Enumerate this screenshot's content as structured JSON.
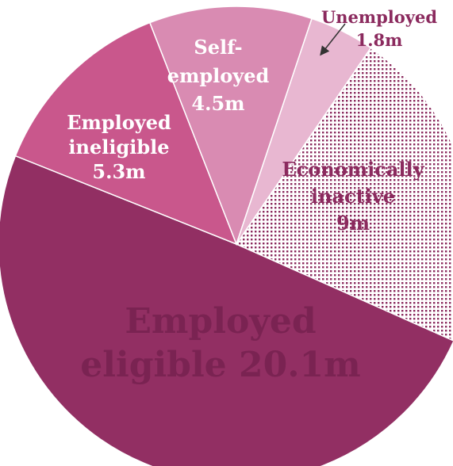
{
  "chart_data": {
    "type": "pie",
    "title": "",
    "unit": "m",
    "slices": [
      {
        "name": "Employed eligible",
        "value": 20.1,
        "label_lines": [
          "Employed",
          "eligible 20.1m"
        ],
        "color": "#922f63",
        "pattern": "solid"
      },
      {
        "name": "Employed ineligible",
        "value": 5.3,
        "label_lines": [
          "Employed",
          "ineligible",
          "5.3m"
        ],
        "color": "#c9578c",
        "pattern": "solid"
      },
      {
        "name": "Self-employed",
        "value": 4.5,
        "label_lines": [
          "Self-",
          "employed",
          "4.5m"
        ],
        "color": "#d98bb2",
        "pattern": "solid"
      },
      {
        "name": "Unemployed",
        "value": 1.8,
        "label_lines": [
          "Unemployed",
          "1.8m"
        ],
        "color": "#e8b7d1",
        "pattern": "solid"
      },
      {
        "name": "Economically inactive",
        "value": 9,
        "label_lines": [
          "Economically",
          "inactive",
          "9m"
        ],
        "color": "#8b2a5e",
        "pattern": "dotted"
      }
    ]
  }
}
